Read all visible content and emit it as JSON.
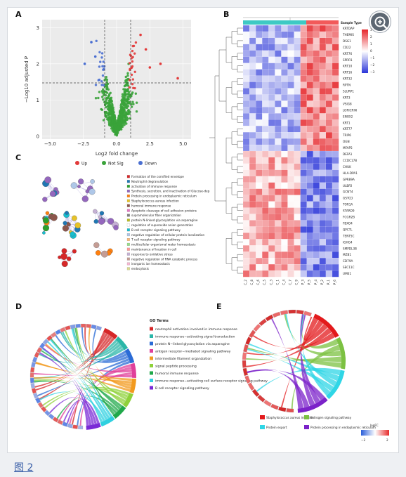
{
  "figure_caption": "图 2",
  "panels": {
    "A": {
      "label": "A",
      "x_axis_label": "Log2 fold change",
      "y_axis_label": "−Log10 adjusted P",
      "x_ticks": [
        "−5.0",
        "−2.5",
        "0.0",
        "2.5",
        "5.0"
      ],
      "y_ticks": [
        "0",
        "1",
        "2",
        "3"
      ]
    },
    "B": {
      "label": "B",
      "annotation_label": "Sample Type",
      "color_scale_ticks": [
        "3",
        "2",
        "1",
        "0",
        "−1",
        "−2",
        "−3"
      ],
      "genes": [
        "KRTDAP",
        "THEMIS",
        "DSG1",
        "CD22",
        "KRT76",
        "SPRR1",
        "KRT10",
        "KRT16",
        "KRT32",
        "RPTN",
        "SLURP1",
        "KRT3",
        "VSIG8",
        "LORICRIN",
        "ENOX2",
        "KRT1",
        "KRT77",
        "TRIP6",
        "OGN",
        "MFAP5",
        "DEFA1",
        "CCDC178",
        "CHUK",
        "HLA-DPA1",
        "GPR89A",
        "ULBP2",
        "GCNT4",
        "GSTCD",
        "TOR1A",
        "STARD9",
        "FCGR2B",
        "FBXO4",
        "QPCTL",
        "TENT5C",
        "IGHG4",
        "SMPDL3B",
        "MZB1",
        "CD79A",
        "SEC11C",
        "UME1"
      ],
      "samples": [
        "C_2",
        "C_8",
        "C_6",
        "C_5",
        "C_3",
        "C_1",
        "C_4",
        "C_7",
        "C_9",
        "P_3",
        "P_5",
        "P_4",
        "P_2",
        "P_1",
        "P_6"
      ]
    },
    "C": {
      "label": "C",
      "legend": [
        {
          "label": "Up",
          "color": "#e23a3a"
        },
        {
          "label": "Not Sig",
          "color": "#3aa33a"
        },
        {
          "label": "Down",
          "color": "#4a6fd1"
        }
      ],
      "terms": [
        {
          "label": "Formation of the cornified envelope",
          "color": "#d62728"
        },
        {
          "label": "Neutrophil degranulation",
          "color": "#1f77b4"
        },
        {
          "label": "activation of immune response",
          "color": "#2ca02c"
        },
        {
          "label": "Synthesis, secretion, and inactivation of Glucose-dep",
          "color": "#9467bd"
        },
        {
          "label": "Protein processing in endoplasmic reticulum",
          "color": "#ff7f0e"
        },
        {
          "label": "Staphylococcus aureus infection",
          "color": "#e6c229"
        },
        {
          "label": "humoral immune response",
          "color": "#8c564b"
        },
        {
          "label": "Apoptotic cleavage of cell adhesion  proteins",
          "color": "#e377c2"
        },
        {
          "label": "supramolecular fiber organization",
          "color": "#7f7f7f"
        },
        {
          "label": "protein N-linked glycosylation via asparagine",
          "color": "#bcbd22"
        },
        {
          "label": "regulation of superoxide anion generation",
          "color": "#ffffff"
        },
        {
          "label": "B cell receptor signaling pathway",
          "color": "#17becf"
        },
        {
          "label": "negative regulation of cellular protein localization",
          "color": "#aec7e8"
        },
        {
          "label": "T cell receptor signaling pathway",
          "color": "#ffbb78"
        },
        {
          "label": "multicellular organismal water homeostasis",
          "color": "#98df8a"
        },
        {
          "label": "maintenance of location in cell",
          "color": "#ff9896"
        },
        {
          "label": "response to oxidative stress",
          "color": "#c5b0d5"
        },
        {
          "label": "negative regulation of RNA catabolic process",
          "color": "#c49c94"
        },
        {
          "label": "inorganic ion homeostasis",
          "color": "#f7b6d2"
        },
        {
          "label": "endocytosis",
          "color": "#dbdb8d"
        }
      ]
    },
    "D": {
      "label": "D",
      "legend_title": "GO Terms",
      "terms": [
        {
          "label": "neutrophil activation involved in immune response",
          "color": "#d62728"
        },
        {
          "label": "immune response−activating signal transduction",
          "color": "#2ab6a8"
        },
        {
          "label": "protein N−linked glycosylation via asparagine",
          "color": "#2a6bd6"
        },
        {
          "label": "antigen receptor−mediated signaling pathway",
          "color": "#e0409a"
        },
        {
          "label": "intermediate filament organization",
          "color": "#f29a1e"
        },
        {
          "label": "signal peptide processing",
          "color": "#8fd13a"
        },
        {
          "label": "humoral immune response",
          "color": "#1fa84a"
        },
        {
          "label": "immune response−activating cell surface receptor signaling pathway",
          "color": "#2fd0e0"
        },
        {
          "label": "B cell receptor signaling pathway",
          "color": "#7a2ad6"
        }
      ]
    },
    "E": {
      "label": "E",
      "legend": [
        {
          "label": "Staphylococcus aureus infection",
          "color": "#e31a1c"
        },
        {
          "label": "Estrogen signaling pathway",
          "color": "#7cc142"
        },
        {
          "label": "Protein export",
          "color": "#2fd6e6"
        },
        {
          "label": "Protein processing in endoplasmic reticulum",
          "color": "#7b22c9"
        }
      ],
      "logfc_title": "logFC",
      "logfc_ticks": [
        "−2",
        "2"
      ]
    }
  }
}
